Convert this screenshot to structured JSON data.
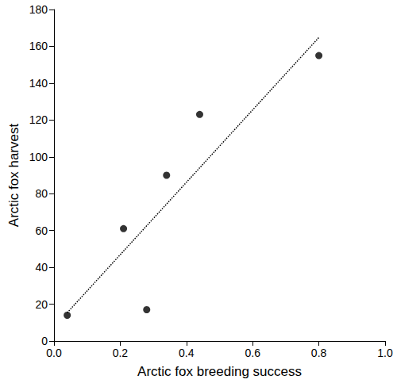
{
  "chart_data": {
    "type": "scatter",
    "x_label": "Arctic fox breeding success",
    "y_label": "Arctic fox harvest",
    "xlim": [
      0,
      1
    ],
    "xticks": [
      {
        "value": 0,
        "label": "0.0"
      },
      0.2,
      0.4,
      0.6,
      0.8,
      {
        "value": 1,
        "label": "1.0"
      }
    ],
    "ylim": [
      0,
      180
    ],
    "yticks": [
      0,
      20,
      40,
      60,
      80,
      100,
      120,
      140,
      160,
      180
    ],
    "grid": false,
    "series": [
      {
        "type": "scatter",
        "marker": "circle",
        "color": "#000000",
        "x": [
          0.04,
          0.21,
          0.28,
          0.34,
          0.44,
          0.8
        ],
        "values": [
          14,
          61,
          17,
          90,
          123,
          155
        ]
      },
      {
        "type": "line",
        "line_style": "dotted",
        "color": "#000000",
        "x": [
          0.04,
          0.8
        ],
        "values": [
          15.4,
          164.8
        ]
      }
    ]
  }
}
